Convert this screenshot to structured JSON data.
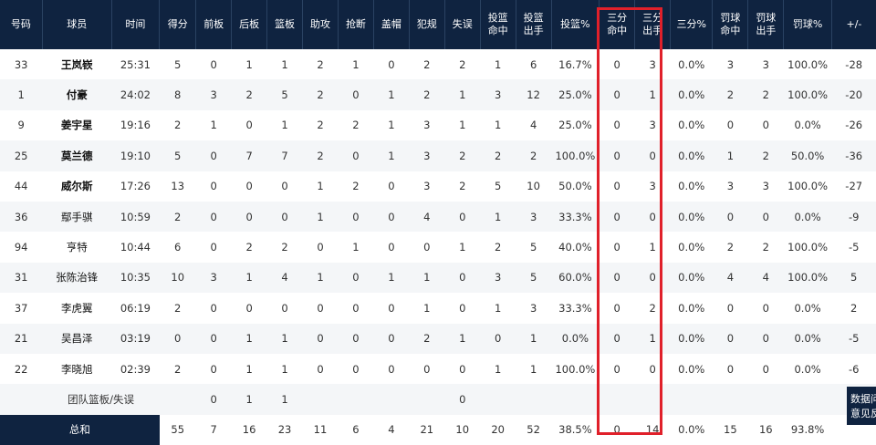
{
  "headers": [
    "号码",
    "球员",
    "时间",
    "得分",
    "前板",
    "后板",
    "篮板",
    "助攻",
    "抢断",
    "盖帽",
    "犯规",
    "失误",
    "投篮\n命中",
    "投篮\n出手",
    "投篮%",
    "三分\n命中",
    "三分\n出手",
    "三分%",
    "罚球\n命中",
    "罚球\n出手",
    "罚球%",
    "+/-"
  ],
  "rows": [
    [
      "33",
      "王岚嵚",
      "25:31",
      "5",
      "0",
      "1",
      "1",
      "2",
      "1",
      "0",
      "2",
      "2",
      "1",
      "6",
      "16.7%",
      "0",
      "3",
      "0.0%",
      "3",
      "3",
      "100.0%",
      "-28"
    ],
    [
      "1",
      "付豪",
      "24:02",
      "8",
      "3",
      "2",
      "5",
      "2",
      "0",
      "1",
      "2",
      "1",
      "3",
      "12",
      "25.0%",
      "0",
      "1",
      "0.0%",
      "2",
      "2",
      "100.0%",
      "-20"
    ],
    [
      "9",
      "姜宇星",
      "19:16",
      "2",
      "1",
      "0",
      "1",
      "2",
      "2",
      "1",
      "3",
      "1",
      "1",
      "4",
      "25.0%",
      "0",
      "3",
      "0.0%",
      "0",
      "0",
      "0.0%",
      "-26"
    ],
    [
      "25",
      "莫兰德",
      "19:10",
      "5",
      "0",
      "7",
      "7",
      "2",
      "0",
      "1",
      "3",
      "2",
      "2",
      "2",
      "100.0%",
      "0",
      "0",
      "0.0%",
      "1",
      "2",
      "50.0%",
      "-36"
    ],
    [
      "44",
      "威尔斯",
      "17:26",
      "13",
      "0",
      "0",
      "0",
      "1",
      "2",
      "0",
      "3",
      "2",
      "5",
      "10",
      "50.0%",
      "0",
      "3",
      "0.0%",
      "3",
      "3",
      "100.0%",
      "-27"
    ],
    [
      "36",
      "鄢手骐",
      "10:59",
      "2",
      "0",
      "0",
      "0",
      "1",
      "0",
      "0",
      "4",
      "0",
      "1",
      "3",
      "33.3%",
      "0",
      "0",
      "0.0%",
      "0",
      "0",
      "0.0%",
      "-9"
    ],
    [
      "94",
      "亨特",
      "10:44",
      "6",
      "0",
      "2",
      "2",
      "0",
      "1",
      "0",
      "0",
      "1",
      "2",
      "5",
      "40.0%",
      "0",
      "1",
      "0.0%",
      "2",
      "2",
      "100.0%",
      "-5"
    ],
    [
      "31",
      "张陈治锋",
      "10:35",
      "10",
      "3",
      "1",
      "4",
      "1",
      "0",
      "1",
      "1",
      "0",
      "3",
      "5",
      "60.0%",
      "0",
      "0",
      "0.0%",
      "4",
      "4",
      "100.0%",
      "5"
    ],
    [
      "37",
      "李虎翼",
      "06:19",
      "2",
      "0",
      "0",
      "0",
      "0",
      "0",
      "0",
      "1",
      "0",
      "1",
      "3",
      "33.3%",
      "0",
      "2",
      "0.0%",
      "0",
      "0",
      "0.0%",
      "2"
    ],
    [
      "21",
      "吴昌泽",
      "03:19",
      "0",
      "0",
      "1",
      "1",
      "0",
      "0",
      "0",
      "2",
      "1",
      "0",
      "1",
      "0.0%",
      "0",
      "1",
      "0.0%",
      "0",
      "0",
      "0.0%",
      "-5"
    ],
    [
      "22",
      "李晓旭",
      "02:39",
      "2",
      "0",
      "1",
      "1",
      "0",
      "0",
      "0",
      "0",
      "0",
      "1",
      "1",
      "100.0%",
      "0",
      "0",
      "0.0%",
      "0",
      "0",
      "0.0%",
      "-6"
    ]
  ],
  "team_row": {
    "label": "团队篮板/失误",
    "front": "0",
    "back": "1",
    "reb": "1",
    "tov": "0"
  },
  "total_row": {
    "label": "总和",
    "pts": "55",
    "front": "7",
    "back": "16",
    "reb": "23",
    "ast": "11",
    "stl": "6",
    "blk": "4",
    "pf": "21",
    "tov": "10",
    "fgm": "20",
    "fga": "52",
    "fgp": "38.5%",
    "tpm": "0",
    "tpa": "14",
    "tpp": "0.0%",
    "ftm": "15",
    "fta": "16",
    "ftp": "93.8%"
  },
  "feedback": {
    "line1": "数据问",
    "line2": "意见反"
  },
  "colors": {
    "header_bg": "#0f2340",
    "highlight": "#e0202a"
  }
}
